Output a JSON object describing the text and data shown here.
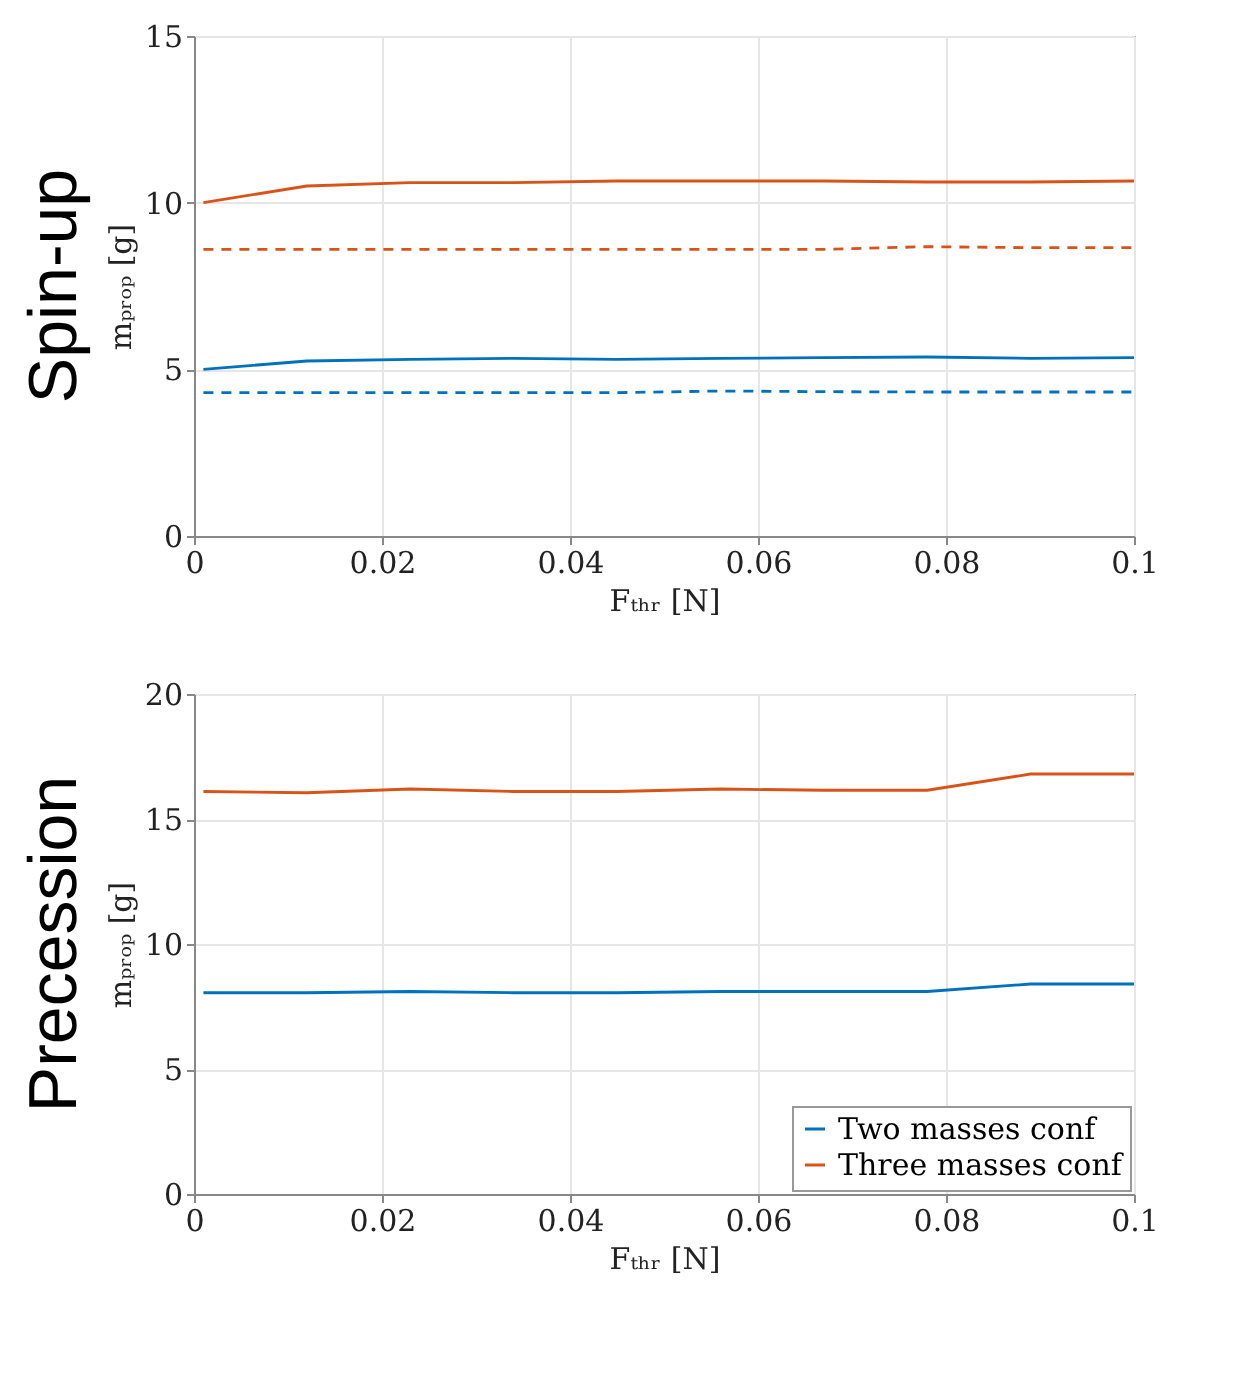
{
  "chart_data": [
    {
      "type": "line",
      "title": "Spin-up",
      "xlabel": "Fₜₕᵣ [N]",
      "ylabel": "mₚᵣₒₚ [g]",
      "x": [
        0.001,
        0.012,
        0.023,
        0.034,
        0.045,
        0.056,
        0.067,
        0.078,
        0.089,
        0.1
      ],
      "xlim": [
        0,
        0.1
      ],
      "xticks": [
        0,
        0.02,
        0.04,
        0.06,
        0.08,
        0.1
      ],
      "ylim": [
        0,
        15
      ],
      "yticks": [
        0,
        5,
        10,
        15
      ],
      "grid": true,
      "series": [
        {
          "color": "#0072bd",
          "line_style": "solid",
          "values": [
            5.0,
            5.25,
            5.3,
            5.33,
            5.3,
            5.33,
            5.35,
            5.37,
            5.33,
            5.35
          ]
        },
        {
          "color": "#0072bd",
          "line_style": "dashed",
          "values": [
            4.3,
            4.3,
            4.3,
            4.3,
            4.3,
            4.35,
            4.33,
            4.32,
            4.32,
            4.32
          ]
        },
        {
          "color": "#d95319",
          "line_style": "solid",
          "values": [
            10.0,
            10.5,
            10.6,
            10.6,
            10.65,
            10.65,
            10.65,
            10.62,
            10.62,
            10.65
          ]
        },
        {
          "color": "#d95319",
          "line_style": "dashed",
          "values": [
            8.6,
            8.6,
            8.6,
            8.6,
            8.6,
            8.6,
            8.6,
            8.68,
            8.65,
            8.65
          ]
        }
      ]
    },
    {
      "type": "line",
      "title": "Precession",
      "xlabel": "Fₜₕᵣ [N]",
      "ylabel": "mₚᵣₒₚ [g]",
      "x": [
        0.001,
        0.012,
        0.023,
        0.034,
        0.045,
        0.056,
        0.067,
        0.078,
        0.089,
        0.1
      ],
      "xlim": [
        0,
        0.1
      ],
      "xticks": [
        0,
        0.02,
        0.04,
        0.06,
        0.08,
        0.1
      ],
      "ylim": [
        0,
        20
      ],
      "yticks": [
        0,
        5,
        10,
        15,
        20
      ],
      "grid": true,
      "legend": "bottom right",
      "series": [
        {
          "name": "Two masses conf",
          "color": "#0072bd",
          "line_style": "solid",
          "values": [
            8.05,
            8.05,
            8.1,
            8.05,
            8.05,
            8.1,
            8.1,
            8.1,
            8.4,
            8.4
          ]
        },
        {
          "name": "Three masses conf",
          "color": "#d95319",
          "line_style": "solid",
          "values": [
            16.1,
            16.05,
            16.2,
            16.1,
            16.1,
            16.2,
            16.15,
            16.15,
            16.8,
            16.8
          ]
        }
      ]
    }
  ]
}
